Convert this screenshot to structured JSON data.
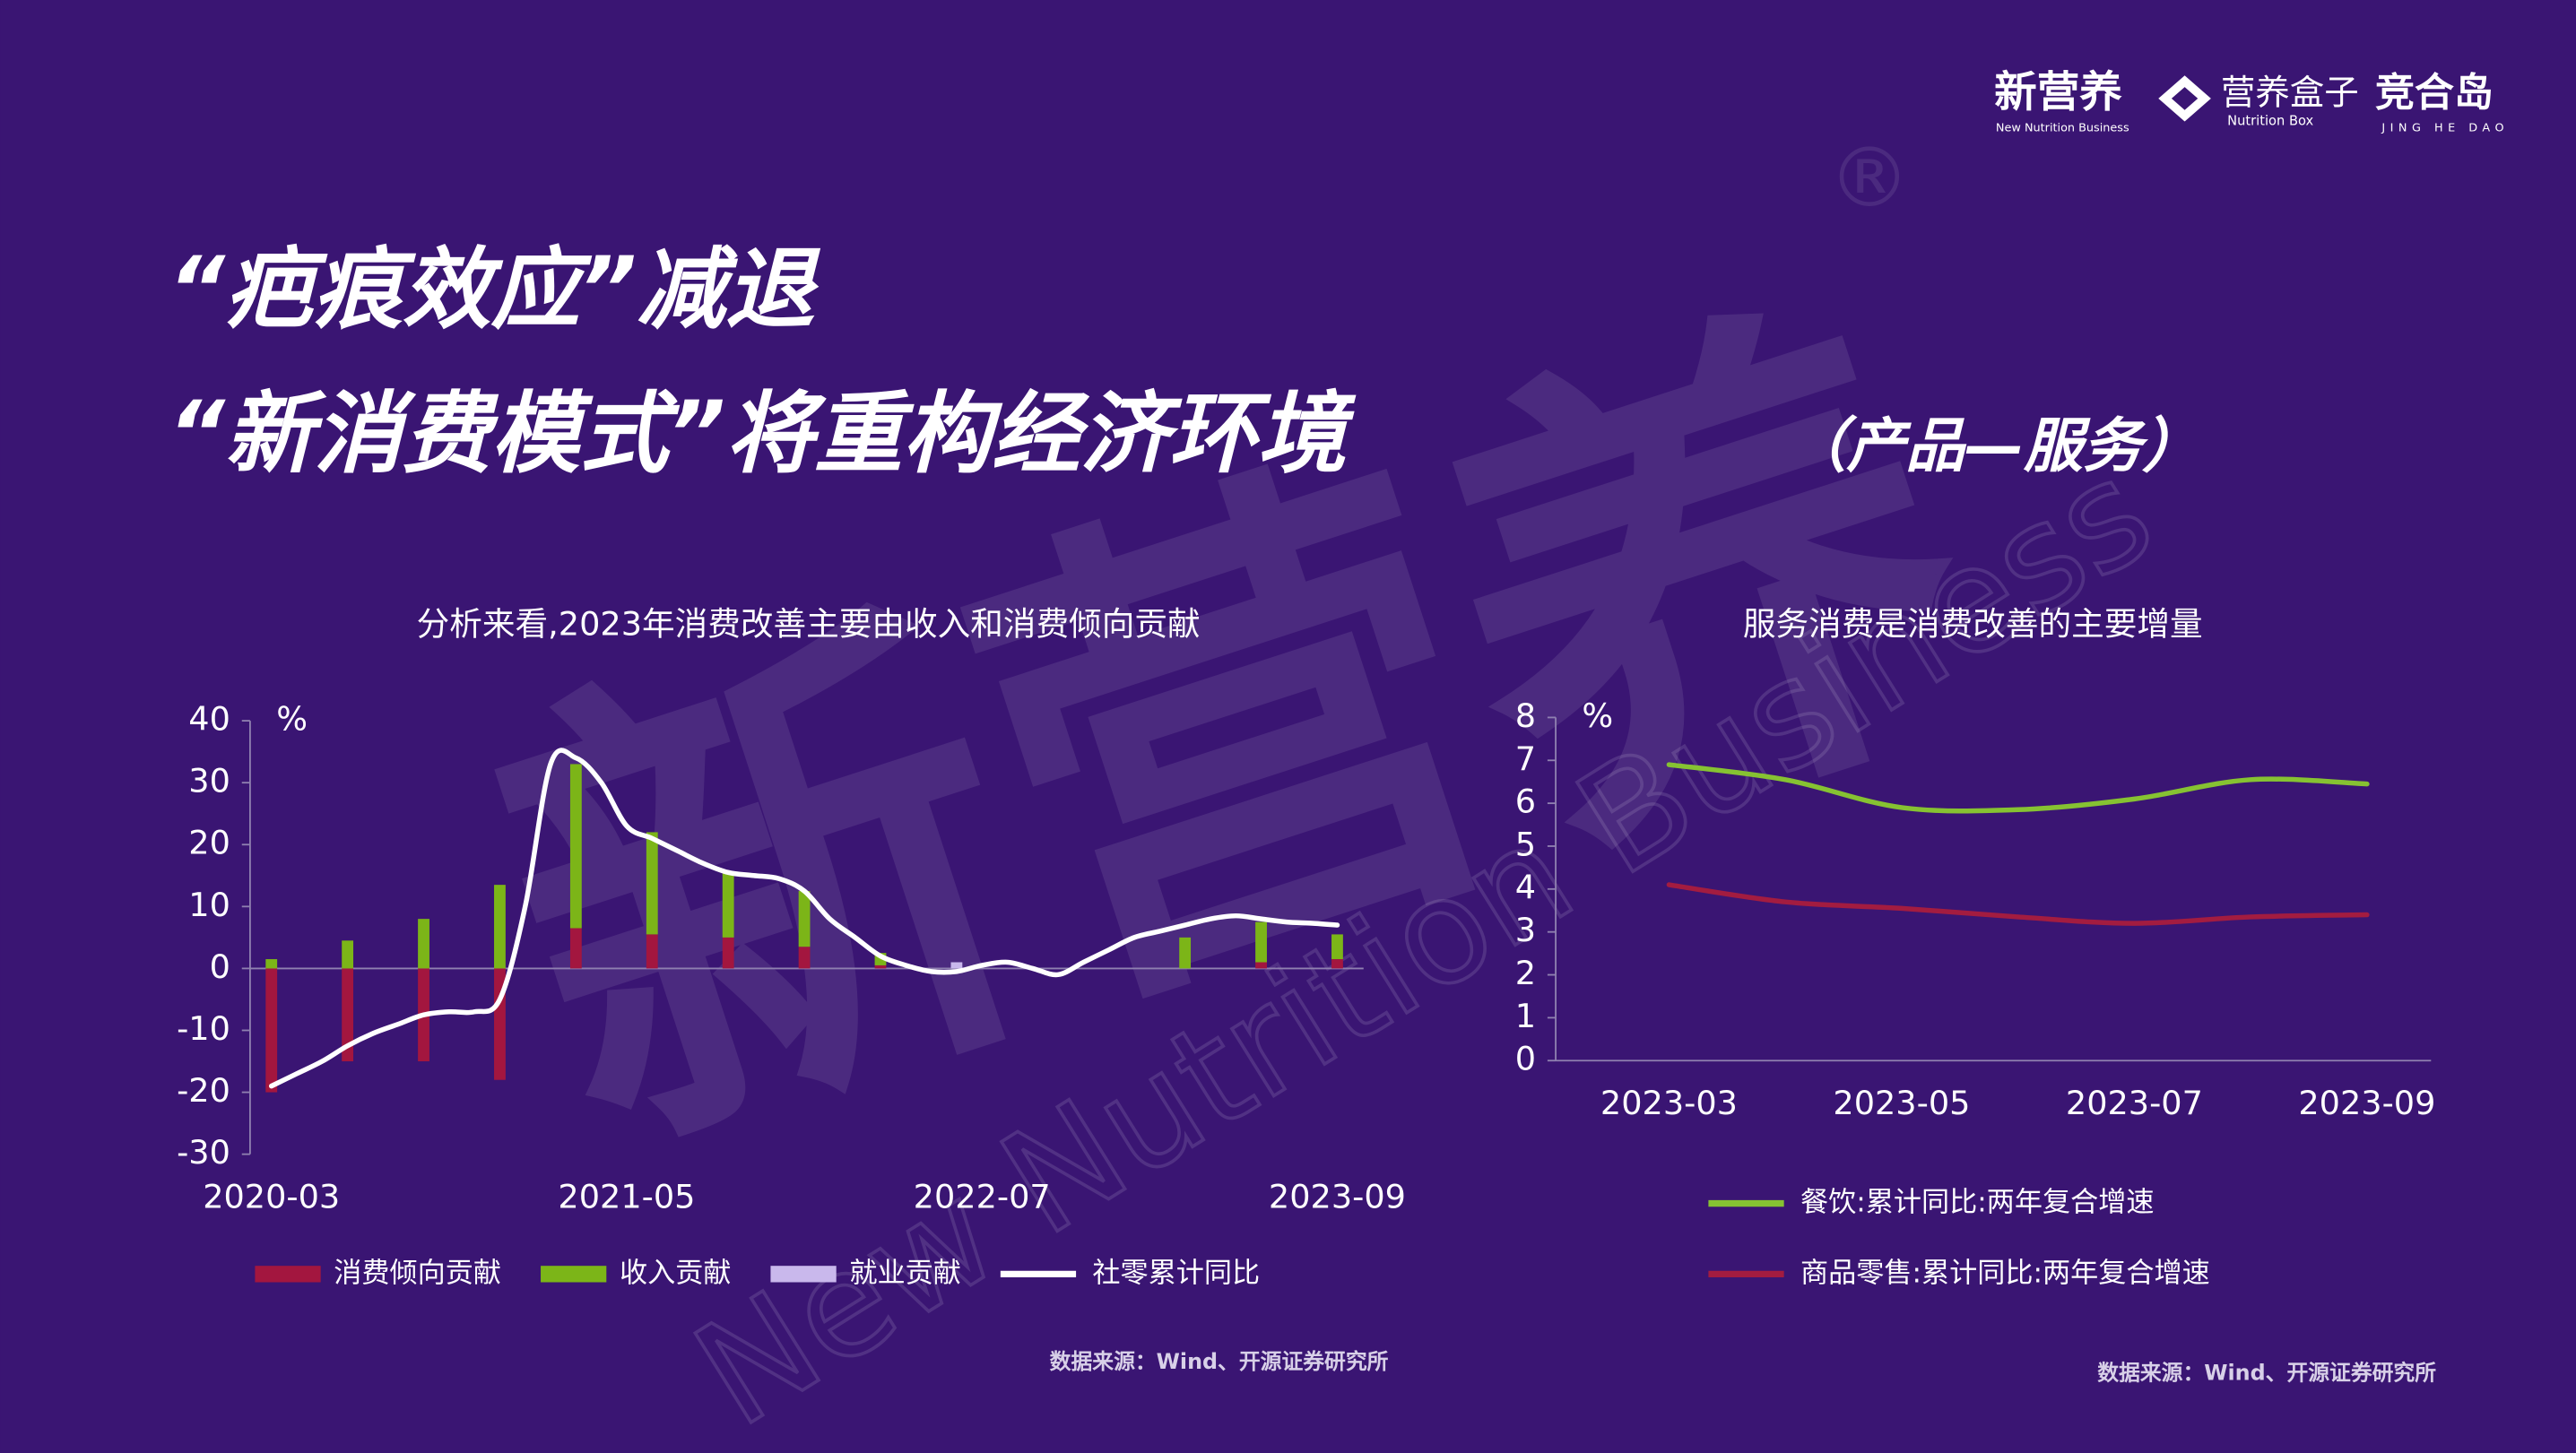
{
  "header": {
    "title_line1": "“疤痕效应”减退",
    "title_line2": "“新消费模式”将重构经济环境",
    "title_note": "（产品—服务）"
  },
  "brands": [
    {
      "name": "新营养",
      "tagline": "New Nutrition Business"
    },
    {
      "name": "营养盒子",
      "tagline": "Nutrition Box"
    },
    {
      "name": "竞合岛",
      "tagline": "JING HE DAO"
    }
  ],
  "watermark": {
    "text": "新营养",
    "subtext": "New Nutrition Business",
    "mark": "®"
  },
  "chart_data": [
    {
      "type": "bar",
      "title": "分析来看,2023年消费改善主要由收入和消费倾向贡献",
      "ylabel": "%",
      "categories": [
        "2020-03",
        null,
        null,
        null,
        null,
        null,
        null,
        null,
        null,
        null,
        null,
        null,
        null,
        null,
        "2021-05",
        null,
        null,
        null,
        null,
        null,
        null,
        null,
        null,
        null,
        null,
        null,
        null,
        null,
        "2022-07",
        null,
        null,
        null,
        null,
        null,
        null,
        null,
        null,
        null,
        null,
        null,
        null,
        null,
        "2023-09"
      ],
      "ylim": [
        -30,
        40
      ],
      "yticks": [
        -30,
        -20,
        -10,
        0,
        10,
        20,
        30,
        40
      ],
      "legend": "bottom",
      "legend_layout": "row",
      "source": "数据来源：Wind、开源证券研究所",
      "series": [
        {
          "name": "消费倾向贡献",
          "color": "#a3163f",
          "values": [
            -20,
            null,
            null,
            -15,
            null,
            null,
            -15,
            null,
            null,
            -18,
            null,
            null,
            6.5,
            null,
            null,
            5.5,
            null,
            null,
            5,
            null,
            null,
            3.5,
            null,
            null,
            0.5,
            null,
            null,
            null,
            null,
            null,
            null,
            null,
            null,
            null,
            null,
            null,
            null,
            null,
            null,
            1,
            null,
            null,
            1.5
          ]
        },
        {
          "name": "收入贡献",
          "color": "#7cb518",
          "values": [
            1.5,
            null,
            null,
            4.5,
            null,
            null,
            8,
            null,
            null,
            13.5,
            null,
            null,
            26.5,
            null,
            null,
            16.5,
            null,
            null,
            10.5,
            null,
            null,
            9,
            null,
            null,
            2,
            null,
            null,
            null,
            null,
            null,
            null,
            null,
            null,
            null,
            null,
            null,
            5,
            null,
            null,
            6.5,
            null,
            null,
            4
          ]
        },
        {
          "name": "就业贡献",
          "color": "#c9b8ec",
          "values": [
            null,
            null,
            null,
            null,
            null,
            null,
            null,
            null,
            null,
            null,
            null,
            null,
            null,
            null,
            null,
            null,
            null,
            null,
            null,
            null,
            null,
            null,
            null,
            null,
            null,
            null,
            null,
            1,
            null,
            null,
            null,
            null,
            null,
            null,
            null,
            null,
            null,
            null,
            null,
            null,
            null,
            null,
            null
          ]
        },
        {
          "name": "社零累计同比",
          "color": "#ffffff",
          "type": "line",
          "values": [
            -19,
            -17,
            -15,
            -12.5,
            -10.5,
            -9,
            -7.5,
            -7,
            -7,
            -5,
            10,
            33,
            34,
            30,
            23,
            21,
            19,
            17,
            15.5,
            15,
            14.5,
            12.5,
            8,
            5,
            2,
            0.5,
            -0.5,
            -0.5,
            0.5,
            1,
            0,
            -1,
            1,
            3,
            5,
            6,
            7,
            8,
            8.5,
            8,
            7.5,
            7.3,
            7
          ]
        }
      ]
    },
    {
      "type": "line",
      "title": "服务消费是消费改善的主要增量",
      "ylabel": "%",
      "categories": [
        "2023-03",
        null,
        "2023-05",
        null,
        "2023-07",
        null,
        "2023-09"
      ],
      "ylim": [
        0,
        8
      ],
      "yticks": [
        0,
        1,
        2,
        3,
        4,
        5,
        6,
        7,
        8
      ],
      "legend": "bottom",
      "legend_layout": "column",
      "source": "数据来源：Wind、开源证券研究所",
      "series": [
        {
          "name": "餐饮:累计同比:两年复合增速",
          "color": "#86c232",
          "values": [
            6.9,
            6.55,
            5.9,
            5.85,
            6.1,
            6.55,
            6.45
          ]
        },
        {
          "name": "商品零售:累计同比:两年复合增速",
          "color": "#a31c40",
          "values": [
            4.1,
            3.7,
            3.55,
            3.35,
            3.2,
            3.35,
            3.4
          ]
        }
      ]
    }
  ]
}
